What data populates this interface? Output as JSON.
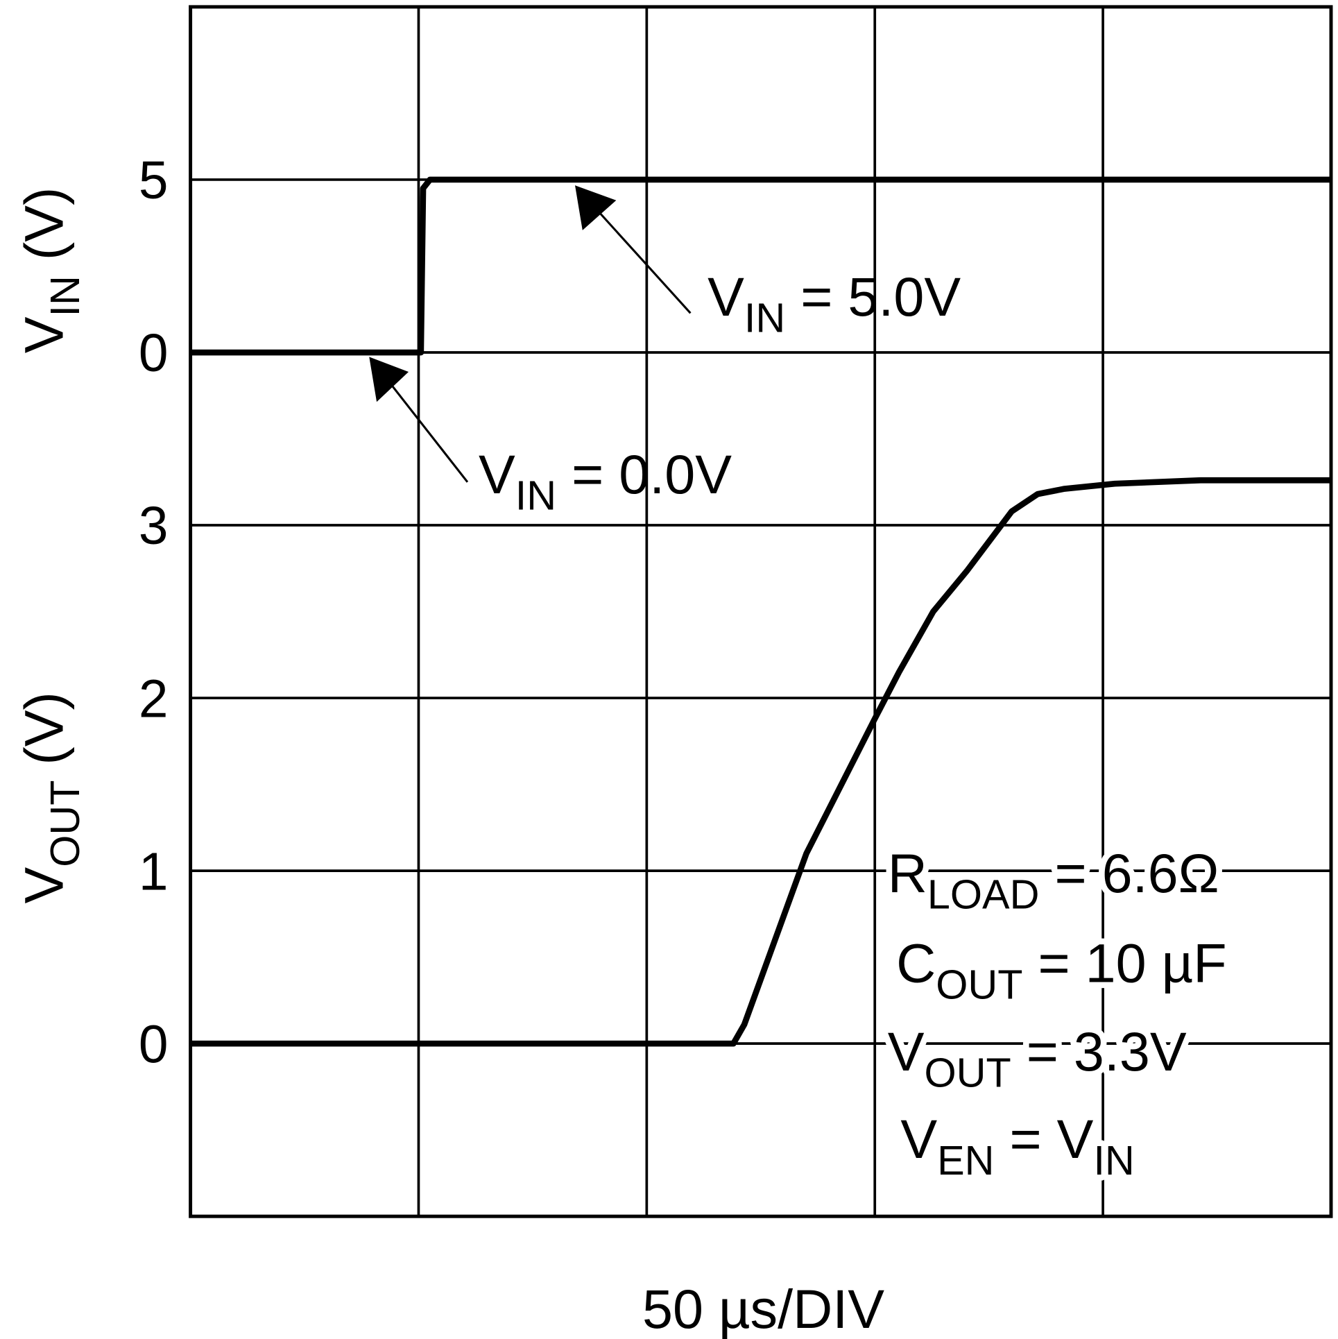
{
  "chart_data": [
    {
      "type": "line",
      "ylabel": [
        "V",
        "IN",
        " (V)"
      ],
      "xlabel": "50 µs/DIV",
      "xlim": [
        0,
        250
      ],
      "xticks": [
        50,
        100,
        150,
        200
      ],
      "ylim": [
        -25,
        10
      ],
      "yticks": [
        0,
        5
      ],
      "grid": true,
      "color": "#000000",
      "x": [
        0,
        50.5,
        51,
        52.5,
        250
      ],
      "values": [
        0,
        0,
        4.75,
        5,
        5
      ],
      "annotations": [
        {
          "parts": [
            "V",
            "IN",
            " = 5.0V"
          ]
        },
        {
          "parts": [
            "V",
            "IN",
            " = 0.0V"
          ]
        }
      ]
    },
    {
      "type": "line",
      "ylabel": [
        "V",
        "OUT",
        " (V)"
      ],
      "xlim": [
        0,
        250
      ],
      "ylim": [
        -1,
        6
      ],
      "yticks": [
        0,
        1,
        2,
        3
      ],
      "grid": true,
      "color": "#000000",
      "x": [
        0,
        119,
        121.4,
        135,
        150,
        155.3,
        162.8,
        170.3,
        180,
        185.7,
        191.4,
        202.6,
        221.4,
        250
      ],
      "values": [
        0,
        0,
        0.11,
        1.1,
        1.88,
        2.15,
        2.5,
        2.74,
        3.08,
        3.18,
        3.21,
        3.24,
        3.26,
        3.26
      ],
      "annotations": [
        {
          "parts": [
            "R",
            "LOAD",
            " = 6.6Ω"
          ]
        },
        {
          "parts": [
            "C",
            "OUT",
            " = 10 µF"
          ]
        },
        {
          "parts": [
            "V",
            "OUT",
            " = 3.3V"
          ]
        },
        {
          "parts": [
            "V",
            "EN",
            " = V",
            "IN"
          ]
        }
      ]
    }
  ]
}
